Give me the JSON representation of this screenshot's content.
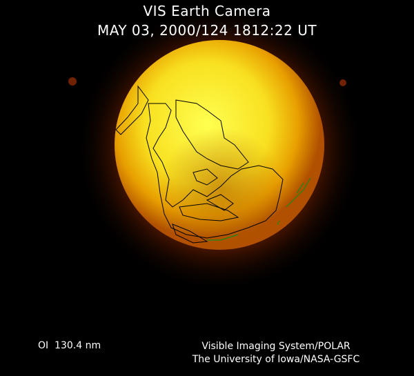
{
  "header": {
    "title": "VIS Earth Camera",
    "timestamp": "MAY 03, 2000/124 1812:22 UT"
  },
  "footer": {
    "wavelength": "OI  130.4 nm",
    "credit_line1": "Visible Imaging System/POLAR",
    "credit_line2": "The University of Iowa/NASA-GSFC"
  },
  "colors": {
    "background": "#000000",
    "disk_core": "#ffff40",
    "disk_mid": "#f0b000",
    "disk_edge": "#a04000",
    "coastline": "#000000",
    "terminator_marks": "#1a8a1a"
  }
}
